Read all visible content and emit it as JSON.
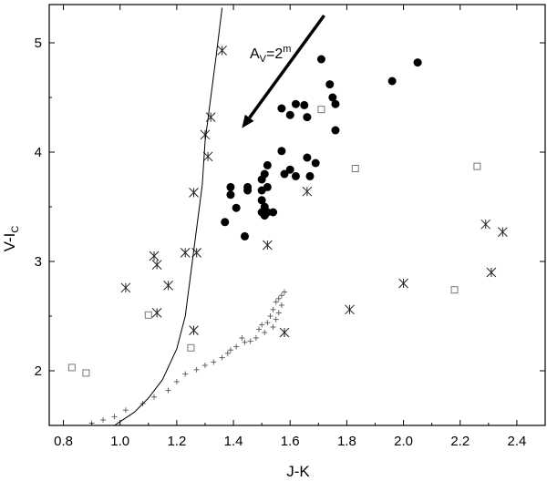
{
  "chart_data": {
    "type": "scatter",
    "xlabel": "J-K",
    "ylabel_main": "V-I",
    "ylabel_sub": "C",
    "xlim": [
      0.75,
      2.5
    ],
    "ylim": [
      1.5,
      5.35
    ],
    "xticks": [
      0.8,
      1.0,
      1.2,
      1.4,
      1.6,
      1.8,
      2.0,
      2.2,
      2.4
    ],
    "yticks": [
      2,
      3,
      4,
      5
    ],
    "xtick_labels": [
      "0.8",
      "1.0",
      "1.2",
      "1.4",
      "1.6",
      "1.8",
      "2.0",
      "2.2",
      "2.4"
    ],
    "ytick_labels": [
      "2",
      "3",
      "4",
      "5"
    ],
    "annotation": {
      "main": "A",
      "sub": "V",
      "eq": "=2",
      "sup": "m",
      "arrow_from": [
        1.72,
        5.25
      ],
      "arrow_to": [
        1.43,
        4.22
      ]
    },
    "series": [
      {
        "marker": "filled-circle",
        "points": [
          [
            1.71,
            4.85
          ],
          [
            2.05,
            4.82
          ],
          [
            1.96,
            4.65
          ],
          [
            1.74,
            4.62
          ],
          [
            1.75,
            4.5
          ],
          [
            1.76,
            4.44
          ],
          [
            1.57,
            4.4
          ],
          [
            1.62,
            4.44
          ],
          [
            1.65,
            4.43
          ],
          [
            1.6,
            4.34
          ],
          [
            1.66,
            4.32
          ],
          [
            1.76,
            4.2
          ],
          [
            1.57,
            4.01
          ],
          [
            1.66,
            3.95
          ],
          [
            1.69,
            3.9
          ],
          [
            1.58,
            3.8
          ],
          [
            1.6,
            3.84
          ],
          [
            1.62,
            3.78
          ],
          [
            1.67,
            3.78
          ],
          [
            1.52,
            3.88
          ],
          [
            1.51,
            3.8
          ],
          [
            1.5,
            3.75
          ],
          [
            1.52,
            3.68
          ],
          [
            1.5,
            3.65
          ],
          [
            1.45,
            3.68
          ],
          [
            1.45,
            3.65
          ],
          [
            1.39,
            3.68
          ],
          [
            1.39,
            3.61
          ],
          [
            1.41,
            3.49
          ],
          [
            1.5,
            3.56
          ],
          [
            1.51,
            3.5
          ],
          [
            1.5,
            3.45
          ],
          [
            1.52,
            3.45
          ],
          [
            1.54,
            3.45
          ],
          [
            1.51,
            3.42
          ],
          [
            1.37,
            3.36
          ],
          [
            1.44,
            3.23
          ]
        ]
      },
      {
        "marker": "open-square",
        "points": [
          [
            1.71,
            4.39
          ],
          [
            1.83,
            3.85
          ],
          [
            2.26,
            3.87
          ],
          [
            1.1,
            2.51
          ],
          [
            1.25,
            2.21
          ],
          [
            2.18,
            2.74
          ],
          [
            0.83,
            2.03
          ],
          [
            0.88,
            1.98
          ]
        ]
      },
      {
        "marker": "asterisk",
        "points": [
          [
            1.36,
            4.93
          ],
          [
            1.32,
            4.32
          ],
          [
            1.3,
            4.16
          ],
          [
            1.31,
            3.96
          ],
          [
            1.26,
            3.63
          ],
          [
            1.66,
            3.64
          ],
          [
            1.52,
            3.15
          ],
          [
            1.27,
            3.08
          ],
          [
            1.23,
            3.08
          ],
          [
            1.12,
            3.05
          ],
          [
            1.13,
            2.97
          ],
          [
            1.17,
            2.78
          ],
          [
            1.02,
            2.76
          ],
          [
            1.13,
            2.53
          ],
          [
            1.26,
            2.37
          ],
          [
            1.58,
            2.35
          ],
          [
            1.81,
            2.56
          ],
          [
            2.0,
            2.8
          ],
          [
            2.29,
            3.34
          ],
          [
            2.35,
            3.27
          ],
          [
            2.31,
            2.9
          ]
        ]
      },
      {
        "marker": "plus",
        "points": [
          [
            1.58,
            2.72
          ],
          [
            1.57,
            2.69
          ],
          [
            1.56,
            2.66
          ],
          [
            1.55,
            2.63
          ],
          [
            1.57,
            2.6
          ],
          [
            1.54,
            2.56
          ],
          [
            1.56,
            2.53
          ],
          [
            1.53,
            2.5
          ],
          [
            1.55,
            2.47
          ],
          [
            1.52,
            2.44
          ],
          [
            1.54,
            2.4
          ],
          [
            1.5,
            2.42
          ],
          [
            1.49,
            2.38
          ],
          [
            1.51,
            2.35
          ],
          [
            1.48,
            2.3
          ],
          [
            1.46,
            2.27
          ],
          [
            1.44,
            2.26
          ],
          [
            1.43,
            2.3
          ],
          [
            1.41,
            2.22
          ],
          [
            1.39,
            2.19
          ],
          [
            1.38,
            2.16
          ],
          [
            1.36,
            2.12
          ],
          [
            1.33,
            2.08
          ],
          [
            1.3,
            2.05
          ],
          [
            1.27,
            2.01
          ],
          [
            1.23,
            1.97
          ],
          [
            1.2,
            1.9
          ],
          [
            1.17,
            1.82
          ],
          [
            1.12,
            1.76
          ],
          [
            1.08,
            1.7
          ],
          [
            1.02,
            1.64
          ],
          [
            0.98,
            1.58
          ],
          [
            0.94,
            1.55
          ],
          [
            0.9,
            1.52
          ]
        ]
      },
      {
        "marker": "line",
        "points": [
          [
            0.98,
            1.5
          ],
          [
            1.05,
            1.62
          ],
          [
            1.1,
            1.75
          ],
          [
            1.15,
            1.92
          ],
          [
            1.2,
            2.2
          ],
          [
            1.23,
            2.5
          ],
          [
            1.25,
            2.9
          ],
          [
            1.27,
            3.3
          ],
          [
            1.29,
            3.7
          ],
          [
            1.3,
            4.1
          ],
          [
            1.32,
            4.5
          ],
          [
            1.34,
            4.9
          ],
          [
            1.36,
            5.32
          ]
        ]
      }
    ]
  }
}
